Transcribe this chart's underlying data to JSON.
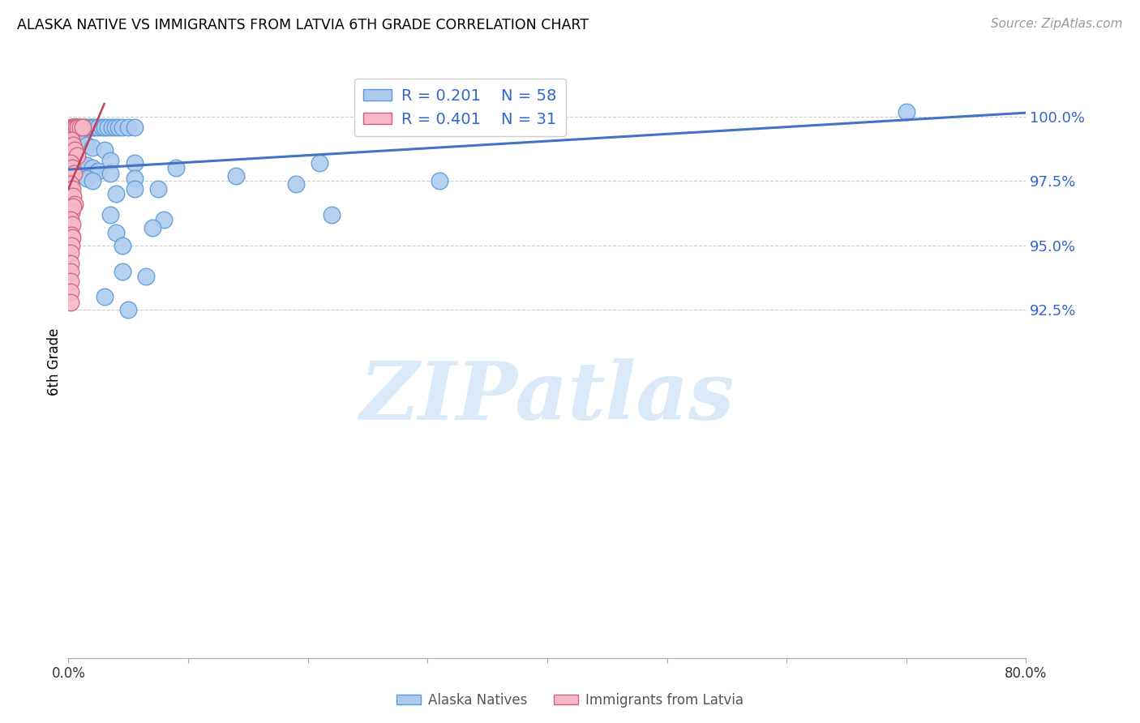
{
  "title": "ALASKA NATIVE VS IMMIGRANTS FROM LATVIA 6TH GRADE CORRELATION CHART",
  "source": "Source: ZipAtlas.com",
  "ylabel": "6th Grade",
  "xlim": [
    0.0,
    80.0
  ],
  "ylim": [
    79.0,
    102.0
  ],
  "blue_r": "0.201",
  "blue_n": "58",
  "pink_r": "0.401",
  "pink_n": "31",
  "blue_color": "#aecbef",
  "pink_color": "#f4b8c8",
  "blue_edge_color": "#5b9bd5",
  "pink_edge_color": "#d4607a",
  "blue_line_color": "#4472c4",
  "pink_line_color": "#c0405a",
  "grid_color": "#cccccc",
  "watermark_text": "ZIPatlas",
  "watermark_color": "#daeaf8",
  "yticks": [
    92.5,
    95.0,
    97.5,
    100.0
  ],
  "ytick_labels": [
    "92.5%",
    "95.0%",
    "97.5%",
    "100.0%"
  ],
  "xtick_positions": [
    0,
    10,
    20,
    30,
    40,
    50,
    60,
    70,
    80
  ],
  "xtick_labels": [
    "0.0%",
    "",
    "",
    "",
    "",
    "",
    "",
    "",
    "80.0%"
  ],
  "blue_line": [
    [
      0.0,
      97.95
    ],
    [
      80.0,
      100.15
    ]
  ],
  "pink_line": [
    [
      0.0,
      97.2
    ],
    [
      3.0,
      100.5
    ]
  ],
  "blue_scatter": [
    [
      0.3,
      99.6
    ],
    [
      0.5,
      99.6
    ],
    [
      0.6,
      99.6
    ],
    [
      0.7,
      99.6
    ],
    [
      0.8,
      99.6
    ],
    [
      1.0,
      99.6
    ],
    [
      1.2,
      99.6
    ],
    [
      1.4,
      99.6
    ],
    [
      1.6,
      99.6
    ],
    [
      1.8,
      99.6
    ],
    [
      2.0,
      99.6
    ],
    [
      2.2,
      99.6
    ],
    [
      2.5,
      99.6
    ],
    [
      2.8,
      99.6
    ],
    [
      3.0,
      99.6
    ],
    [
      3.3,
      99.6
    ],
    [
      3.6,
      99.6
    ],
    [
      3.9,
      99.6
    ],
    [
      4.2,
      99.6
    ],
    [
      4.5,
      99.6
    ],
    [
      5.0,
      99.6
    ],
    [
      5.5,
      99.6
    ],
    [
      0.5,
      99.0
    ],
    [
      1.0,
      99.0
    ],
    [
      1.5,
      98.9
    ],
    [
      2.0,
      98.8
    ],
    [
      3.0,
      98.7
    ],
    [
      0.4,
      98.5
    ],
    [
      0.7,
      98.3
    ],
    [
      1.0,
      98.2
    ],
    [
      1.5,
      98.1
    ],
    [
      2.0,
      98.0
    ],
    [
      2.5,
      97.9
    ],
    [
      3.5,
      98.3
    ],
    [
      5.5,
      98.2
    ],
    [
      1.5,
      97.6
    ],
    [
      2.0,
      97.5
    ],
    [
      3.5,
      97.8
    ],
    [
      5.5,
      97.6
    ],
    [
      9.0,
      98.0
    ],
    [
      21.0,
      98.2
    ],
    [
      14.0,
      97.7
    ],
    [
      4.0,
      97.0
    ],
    [
      5.5,
      97.2
    ],
    [
      7.5,
      97.2
    ],
    [
      19.0,
      97.4
    ],
    [
      3.5,
      96.2
    ],
    [
      8.0,
      96.0
    ],
    [
      22.0,
      96.2
    ],
    [
      31.0,
      97.5
    ],
    [
      4.0,
      95.5
    ],
    [
      7.0,
      95.7
    ],
    [
      4.5,
      95.0
    ],
    [
      4.5,
      94.0
    ],
    [
      6.5,
      93.8
    ],
    [
      70.0,
      100.2
    ],
    [
      3.0,
      93.0
    ],
    [
      5.0,
      92.5
    ]
  ],
  "pink_scatter": [
    [
      0.2,
      99.6
    ],
    [
      0.35,
      99.6
    ],
    [
      0.5,
      99.6
    ],
    [
      0.65,
      99.6
    ],
    [
      0.8,
      99.6
    ],
    [
      1.0,
      99.6
    ],
    [
      1.2,
      99.6
    ],
    [
      0.25,
      99.1
    ],
    [
      0.4,
      98.9
    ],
    [
      0.55,
      98.7
    ],
    [
      0.7,
      98.5
    ],
    [
      0.2,
      98.2
    ],
    [
      0.3,
      98.0
    ],
    [
      0.45,
      97.8
    ],
    [
      0.2,
      97.4
    ],
    [
      0.3,
      97.2
    ],
    [
      0.35,
      96.9
    ],
    [
      0.5,
      96.6
    ],
    [
      0.25,
      96.3
    ],
    [
      0.35,
      96.5
    ],
    [
      0.2,
      96.0
    ],
    [
      0.3,
      95.8
    ],
    [
      0.25,
      95.4
    ],
    [
      0.3,
      95.3
    ],
    [
      0.22,
      95.0
    ],
    [
      0.18,
      94.7
    ],
    [
      0.2,
      94.3
    ],
    [
      0.2,
      94.0
    ],
    [
      0.18,
      93.6
    ],
    [
      0.2,
      93.2
    ],
    [
      0.18,
      92.8
    ]
  ]
}
